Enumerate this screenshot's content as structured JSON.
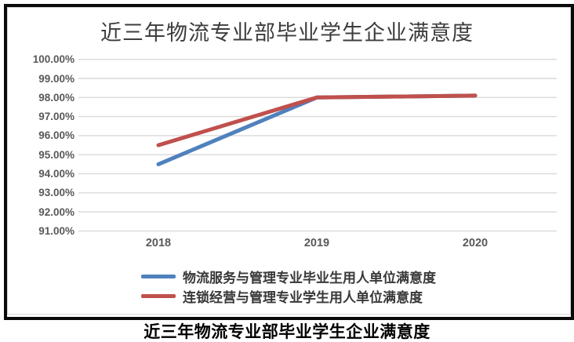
{
  "chart": {
    "title": "近三年物流专业部毕业学生企业满意度"
  },
  "caption": "近三年物流专业部毕业学生企业满意度",
  "chart_data": {
    "type": "line",
    "title": "近三年物流专业部毕业学生企业满意度",
    "categories": [
      "2018",
      "2019",
      "2020"
    ],
    "series": [
      {
        "name": "物流服务与管理专业毕业生用人单位满意度",
        "values": [
          94.5,
          98.0,
          98.1
        ],
        "color": "#4F81BD"
      },
      {
        "name": "连锁经营与管理专业学生用人单位满意度",
        "values": [
          95.5,
          98.0,
          98.1
        ],
        "color": "#C0504D"
      }
    ],
    "unit": "%",
    "ylim": [
      91,
      100
    ],
    "ytick_labels": [
      "100.00%",
      "99.00%",
      "98.00%",
      "97.00%",
      "96.00%",
      "95.00%",
      "94.00%",
      "93.00%",
      "92.00%",
      "91.00%"
    ],
    "xlabel": "",
    "ylabel": "",
    "grid": "horizontal",
    "gridline_color": "#D9D9D9",
    "axis_label_color": "#595959",
    "legend_position": "bottom"
  }
}
